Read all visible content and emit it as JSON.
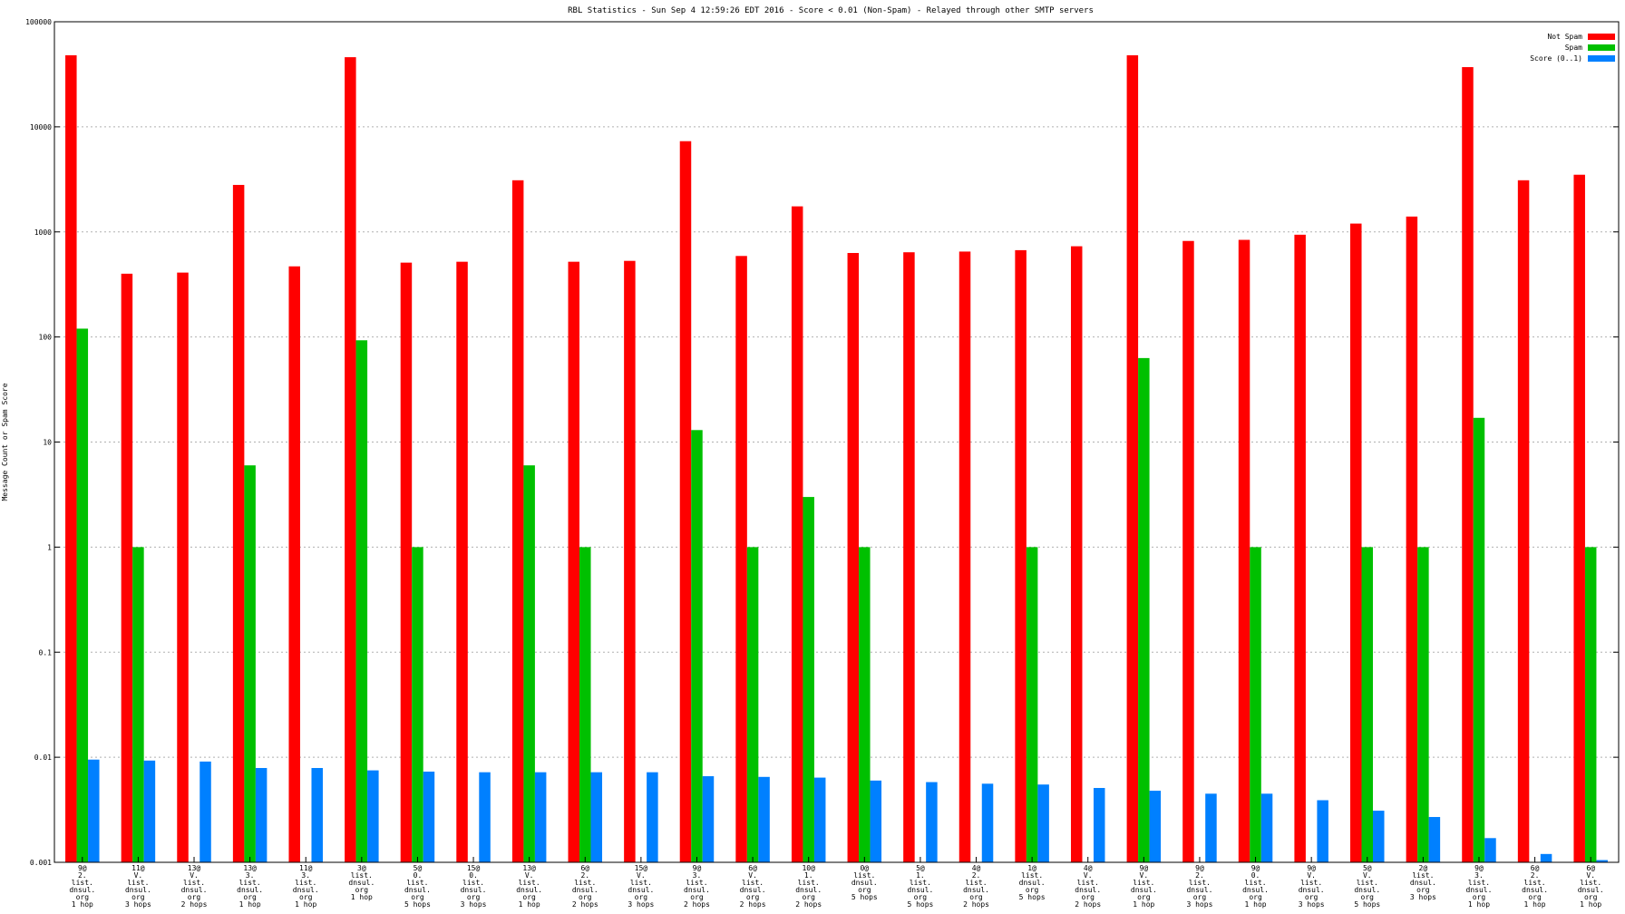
{
  "chart_data": {
    "type": "bar",
    "title": "RBL Statistics - Sun Sep  4 12:59:26 EDT 2016 - Score < 0.01 (Non-Spam) - Relayed through other SMTP servers",
    "ylabel": "Message Count or Spam Score",
    "xlabel": "",
    "yscale": "log",
    "ylim": [
      0.001,
      100000
    ],
    "yticks": [
      "0.001",
      "0.01",
      "0.1",
      "1",
      "10",
      "100",
      "1000",
      "10000",
      "100000"
    ],
    "grid": true,
    "legend_position": "top-right",
    "categories": [
      [
        "9@",
        "2.",
        "list.",
        "dnsul.",
        "org",
        "1 hop"
      ],
      [
        "11@",
        "V.",
        "list.",
        "dnsul.",
        "org",
        "3 hops"
      ],
      [
        "13@",
        "V.",
        "list.",
        "dnsul.",
        "org",
        "2 hops"
      ],
      [
        "13@",
        "3.",
        "list.",
        "dnsul.",
        "org",
        "1 hop"
      ],
      [
        "11@",
        "3.",
        "list.",
        "dnsul.",
        "org",
        "1 hop"
      ],
      [
        "3@",
        "list.",
        "dnsul.",
        "org",
        "1 hop"
      ],
      [
        "5@",
        "0.",
        "list.",
        "dnsul.",
        "org",
        "5 hops"
      ],
      [
        "15@",
        "0.",
        "list.",
        "dnsul.",
        "org",
        "3 hops"
      ],
      [
        "13@",
        "V.",
        "list.",
        "dnsul.",
        "org",
        "1 hop"
      ],
      [
        "6@",
        "2.",
        "list.",
        "dnsul.",
        "org",
        "2 hops"
      ],
      [
        "15@",
        "V.",
        "list.",
        "dnsul.",
        "org",
        "3 hops"
      ],
      [
        "9@",
        "3.",
        "list.",
        "dnsul.",
        "org",
        "2 hops"
      ],
      [
        "6@",
        "V.",
        "list.",
        "dnsul.",
        "org",
        "2 hops"
      ],
      [
        "10@",
        "1.",
        "list.",
        "dnsul.",
        "org",
        "2 hops"
      ],
      [
        "0@",
        "list.",
        "dnsul.",
        "org",
        "5 hops"
      ],
      [
        "5@",
        "1.",
        "list.",
        "dnsul.",
        "org",
        "5 hops"
      ],
      [
        "4@",
        "2.",
        "list.",
        "dnsul.",
        "org",
        "2 hops"
      ],
      [
        "1@",
        "list.",
        "dnsul.",
        "org",
        "5 hops"
      ],
      [
        "4@",
        "V.",
        "list.",
        "dnsul.",
        "org",
        "2 hops"
      ],
      [
        "9@",
        "V.",
        "list.",
        "dnsul.",
        "org",
        "1 hop"
      ],
      [
        "9@",
        "2.",
        "list.",
        "dnsul.",
        "org",
        "3 hops"
      ],
      [
        "9@",
        "0.",
        "list.",
        "dnsul.",
        "org",
        "1 hop"
      ],
      [
        "9@",
        "V.",
        "list.",
        "dnsul.",
        "org",
        "3 hops"
      ],
      [
        "5@",
        "V.",
        "list.",
        "dnsul.",
        "org",
        "5 hops"
      ],
      [
        "2@",
        "list.",
        "dnsul.",
        "org",
        "3 hops"
      ],
      [
        "9@",
        "3.",
        "list.",
        "dnsul.",
        "org",
        "1 hop"
      ],
      [
        "6@",
        "2.",
        "list.",
        "dnsul.",
        "org",
        "1 hop"
      ],
      [
        "6@",
        "V.",
        "list.",
        "dnsul.",
        "org",
        "1 hop"
      ]
    ],
    "series": [
      {
        "name": "Not Spam",
        "color": "#ff0000",
        "values": [
          48000,
          400,
          410,
          2800,
          470,
          46000,
          510,
          520,
          3100,
          520,
          530,
          7300,
          590,
          1750,
          630,
          640,
          650,
          670,
          730,
          48000,
          820,
          840,
          940,
          1200,
          1400,
          37000,
          3100,
          3500
        ]
      },
      {
        "name": "Spam",
        "color": "#00c000",
        "values": [
          120,
          1,
          null,
          6,
          null,
          93,
          1,
          null,
          6,
          1,
          null,
          13,
          1,
          3,
          1,
          null,
          null,
          1,
          null,
          63,
          null,
          1,
          null,
          1,
          1,
          17,
          null,
          1
        ]
      },
      {
        "name": "Score (0..1)",
        "color": "#0080ff",
        "values": [
          0.0095,
          0.0093,
          0.0091,
          0.0079,
          0.0079,
          0.0075,
          0.0073,
          0.0072,
          0.0072,
          0.0072,
          0.0072,
          0.0066,
          0.0065,
          0.0064,
          0.006,
          0.0058,
          0.0056,
          0.0055,
          0.0051,
          0.0048,
          0.0045,
          0.0045,
          0.0039,
          0.0031,
          0.0027,
          0.0017,
          0.0012,
          0.00105
        ]
      }
    ]
  }
}
